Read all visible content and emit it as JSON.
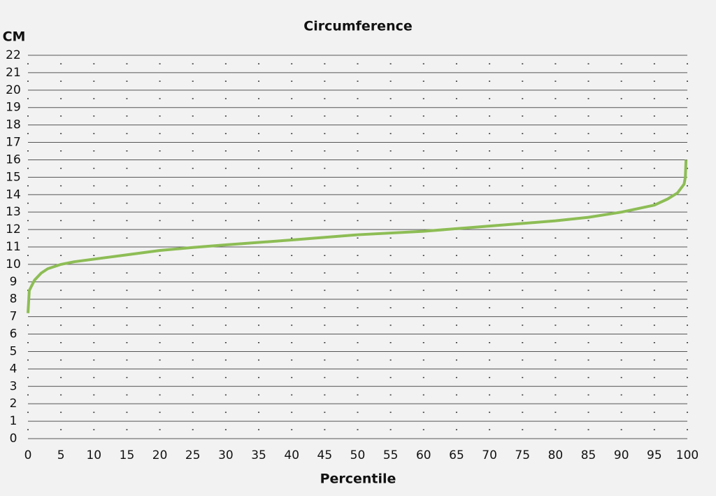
{
  "chart_data": {
    "type": "line",
    "title": "Circumference",
    "y_label": "CM",
    "x_label": "Percentile",
    "x": [
      0,
      0.2,
      1,
      2,
      3,
      5,
      7,
      10,
      15,
      20,
      25,
      30,
      40,
      50,
      60,
      70,
      80,
      85,
      90,
      95,
      97,
      98.5,
      99.5,
      99.7,
      99.8
    ],
    "series": [
      {
        "name": "Circumference",
        "color": "#8dbd55",
        "values": [
          7.2,
          8.5,
          9.1,
          9.5,
          9.75,
          10.0,
          10.15,
          10.3,
          10.55,
          10.8,
          10.97,
          11.12,
          11.4,
          11.7,
          11.9,
          12.2,
          12.5,
          12.7,
          13.0,
          13.4,
          13.75,
          14.1,
          14.6,
          15.0,
          16.0
        ]
      }
    ],
    "xlim": [
      0,
      100
    ],
    "xticks": [
      0,
      5,
      10,
      15,
      20,
      25,
      30,
      35,
      40,
      45,
      50,
      55,
      60,
      65,
      70,
      75,
      80,
      85,
      90,
      95,
      100
    ],
    "ylim": [
      0,
      22
    ],
    "yticks": [
      0,
      1,
      2,
      3,
      4,
      5,
      6,
      7,
      8,
      9,
      10,
      11,
      12,
      13,
      14,
      15,
      16,
      17,
      18,
      19,
      20,
      21,
      22
    ],
    "grid": true
  }
}
